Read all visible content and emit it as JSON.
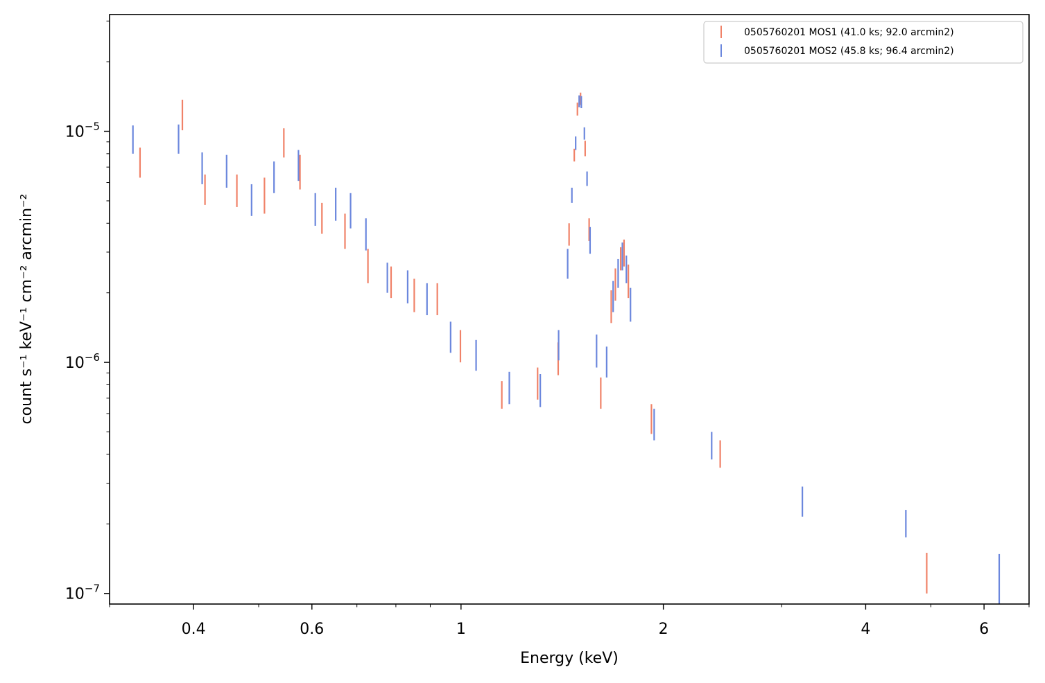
{
  "chart_data": {
    "type": "scatter",
    "title": "",
    "xlabel": "Energy (keV)",
    "ylabel": "count s⁻¹ keV⁻¹ cm⁻² arcmin⁻²",
    "xscale": "log",
    "yscale": "log",
    "xlim": [
      0.3,
      7.0
    ],
    "ylim": [
      9e-08,
      3.2e-05
    ],
    "x_major_ticks": [
      {
        "value": 0.4,
        "label": "0.4"
      },
      {
        "value": 0.6,
        "label": "0.6"
      },
      {
        "value": 1,
        "label": "1"
      },
      {
        "value": 2,
        "label": "2"
      },
      {
        "value": 4,
        "label": "4"
      },
      {
        "value": 6,
        "label": "6"
      }
    ],
    "x_minor_ticks": [
      0.3,
      0.5,
      0.7,
      0.8,
      0.9,
      3,
      5,
      7
    ],
    "y_major_ticks": [
      {
        "value": 1e-07,
        "base": "10",
        "exp": "−7"
      },
      {
        "value": 1e-06,
        "base": "10",
        "exp": "−6"
      },
      {
        "value": 1e-05,
        "base": "10",
        "exp": "−5"
      }
    ],
    "y_minor_ticks": [
      2e-07,
      3e-07,
      4e-07,
      5e-07,
      6e-07,
      7e-07,
      8e-07,
      9e-07,
      2e-06,
      3e-06,
      4e-06,
      5e-06,
      6e-06,
      7e-06,
      8e-06,
      9e-06,
      2e-05,
      3e-05
    ],
    "grid": false,
    "legend_position": "top-right",
    "series": [
      {
        "name": "0505760201 MOS1 (41.0 ks; 92.0 arcmin2)",
        "color": "#f08268",
        "points": [
          {
            "x": 0.333,
            "y_low": 6.3e-06,
            "y_high": 8.5e-06
          },
          {
            "x": 0.385,
            "y_low": 1.01e-05,
            "y_high": 1.37e-05
          },
          {
            "x": 0.416,
            "y_low": 4.8e-06,
            "y_high": 6.5e-06
          },
          {
            "x": 0.464,
            "y_low": 4.7e-06,
            "y_high": 6.5e-06
          },
          {
            "x": 0.51,
            "y_low": 4.4e-06,
            "y_high": 6.3e-06
          },
          {
            "x": 0.545,
            "y_low": 7.7e-06,
            "y_high": 1.03e-05
          },
          {
            "x": 0.576,
            "y_low": 5.6e-06,
            "y_high": 7.9e-06
          },
          {
            "x": 0.621,
            "y_low": 3.6e-06,
            "y_high": 4.9e-06
          },
          {
            "x": 0.672,
            "y_low": 3.1e-06,
            "y_high": 4.4e-06
          },
          {
            "x": 0.727,
            "y_low": 2.2e-06,
            "y_high": 3.1e-06
          },
          {
            "x": 0.787,
            "y_low": 1.9e-06,
            "y_high": 2.6e-06
          },
          {
            "x": 0.852,
            "y_low": 1.65e-06,
            "y_high": 2.3e-06
          },
          {
            "x": 0.922,
            "y_low": 1.6e-06,
            "y_high": 2.2e-06
          },
          {
            "x": 0.998,
            "y_low": 1e-06,
            "y_high": 1.38e-06
          },
          {
            "x": 1.15,
            "y_low": 6.3e-07,
            "y_high": 8.3e-07
          },
          {
            "x": 1.3,
            "y_low": 6.9e-07,
            "y_high": 9.5e-07
          },
          {
            "x": 1.395,
            "y_low": 8.8e-07,
            "y_high": 1.22e-06
          },
          {
            "x": 1.448,
            "y_low": 3.2e-06,
            "y_high": 4e-06
          },
          {
            "x": 1.474,
            "y_low": 7.4e-06,
            "y_high": 8.4e-06
          },
          {
            "x": 1.49,
            "y_low": 1.17e-05,
            "y_high": 1.33e-05
          },
          {
            "x": 1.506,
            "y_low": 1.3e-05,
            "y_high": 1.47e-05
          },
          {
            "x": 1.53,
            "y_low": 7.8e-06,
            "y_high": 9.1e-06
          },
          {
            "x": 1.551,
            "y_low": 3.35e-06,
            "y_high": 4.2e-06
          },
          {
            "x": 1.614,
            "y_low": 6.3e-07,
            "y_high": 8.6e-07
          },
          {
            "x": 1.673,
            "y_low": 1.48e-06,
            "y_high": 2.05e-06
          },
          {
            "x": 1.697,
            "y_low": 1.85e-06,
            "y_high": 2.55e-06
          },
          {
            "x": 1.728,
            "y_low": 2.5e-06,
            "y_high": 3.15e-06
          },
          {
            "x": 1.748,
            "y_low": 2.6e-06,
            "y_high": 3.4e-06
          },
          {
            "x": 1.774,
            "y_low": 1.9e-06,
            "y_high": 2.65e-06
          },
          {
            "x": 1.92,
            "y_low": 4.9e-07,
            "y_high": 6.6e-07
          },
          {
            "x": 2.43,
            "y_low": 3.5e-07,
            "y_high": 4.6e-07
          },
          {
            "x": 4.93,
            "y_low": 1e-07,
            "y_high": 1.5e-07
          }
        ]
      },
      {
        "name": "0505760201 MOS2 (45.8 ks; 96.4 arcmin2)",
        "color": "#6b87dd",
        "points": [
          {
            "x": 0.325,
            "y_low": 8e-06,
            "y_high": 1.06e-05
          },
          {
            "x": 0.38,
            "y_low": 8e-06,
            "y_high": 1.07e-05
          },
          {
            "x": 0.412,
            "y_low": 5.9e-06,
            "y_high": 8.1e-06
          },
          {
            "x": 0.448,
            "y_low": 5.7e-06,
            "y_high": 7.9e-06
          },
          {
            "x": 0.488,
            "y_low": 4.3e-06,
            "y_high": 5.9e-06
          },
          {
            "x": 0.527,
            "y_low": 5.4e-06,
            "y_high": 7.4e-06
          },
          {
            "x": 0.573,
            "y_low": 6.1e-06,
            "y_high": 8.3e-06
          },
          {
            "x": 0.607,
            "y_low": 3.9e-06,
            "y_high": 5.4e-06
          },
          {
            "x": 0.651,
            "y_low": 4.1e-06,
            "y_high": 5.7e-06
          },
          {
            "x": 0.685,
            "y_low": 3.8e-06,
            "y_high": 5.4e-06
          },
          {
            "x": 0.722,
            "y_low": 3.05e-06,
            "y_high": 4.2e-06
          },
          {
            "x": 0.777,
            "y_low": 2e-06,
            "y_high": 2.7e-06
          },
          {
            "x": 0.833,
            "y_low": 1.8e-06,
            "y_high": 2.5e-06
          },
          {
            "x": 0.89,
            "y_low": 1.6e-06,
            "y_high": 2.2e-06
          },
          {
            "x": 0.965,
            "y_low": 1.1e-06,
            "y_high": 1.5e-06
          },
          {
            "x": 1.053,
            "y_low": 9.2e-07,
            "y_high": 1.25e-06
          },
          {
            "x": 1.18,
            "y_low": 6.6e-07,
            "y_high": 9.1e-07
          },
          {
            "x": 1.312,
            "y_low": 6.4e-07,
            "y_high": 8.9e-07
          },
          {
            "x": 1.397,
            "y_low": 1.02e-06,
            "y_high": 1.38e-06
          },
          {
            "x": 1.441,
            "y_low": 2.3e-06,
            "y_high": 3.1e-06
          },
          {
            "x": 1.462,
            "y_low": 4.9e-06,
            "y_high": 5.7e-06
          },
          {
            "x": 1.481,
            "y_low": 8.3e-06,
            "y_high": 9.5e-06
          },
          {
            "x": 1.499,
            "y_low": 1.27e-05,
            "y_high": 1.43e-05
          },
          {
            "x": 1.51,
            "y_low": 1.26e-05,
            "y_high": 1.42e-05
          },
          {
            "x": 1.526,
            "y_low": 9.2e-06,
            "y_high": 1.04e-05
          },
          {
            "x": 1.54,
            "y_low": 5.8e-06,
            "y_high": 6.7e-06
          },
          {
            "x": 1.556,
            "y_low": 2.95e-06,
            "y_high": 3.85e-06
          },
          {
            "x": 1.591,
            "y_low": 9.5e-07,
            "y_high": 1.32e-06
          },
          {
            "x": 1.647,
            "y_low": 8.6e-07,
            "y_high": 1.17e-06
          },
          {
            "x": 1.684,
            "y_low": 1.65e-06,
            "y_high": 2.25e-06
          },
          {
            "x": 1.713,
            "y_low": 2.1e-06,
            "y_high": 2.8e-06
          },
          {
            "x": 1.738,
            "y_low": 2.5e-06,
            "y_high": 3.3e-06
          },
          {
            "x": 1.762,
            "y_low": 2.2e-06,
            "y_high": 2.9e-06
          },
          {
            "x": 1.787,
            "y_low": 1.5e-06,
            "y_high": 2.1e-06
          },
          {
            "x": 1.938,
            "y_low": 4.6e-07,
            "y_high": 6.3e-07
          },
          {
            "x": 2.36,
            "y_low": 3.8e-07,
            "y_high": 5e-07
          },
          {
            "x": 3.22,
            "y_low": 2.15e-07,
            "y_high": 2.9e-07
          },
          {
            "x": 4.59,
            "y_low": 1.75e-07,
            "y_high": 2.3e-07
          },
          {
            "x": 6.32,
            "y_low": 9e-08,
            "y_high": 1.48e-07
          }
        ]
      }
    ]
  }
}
